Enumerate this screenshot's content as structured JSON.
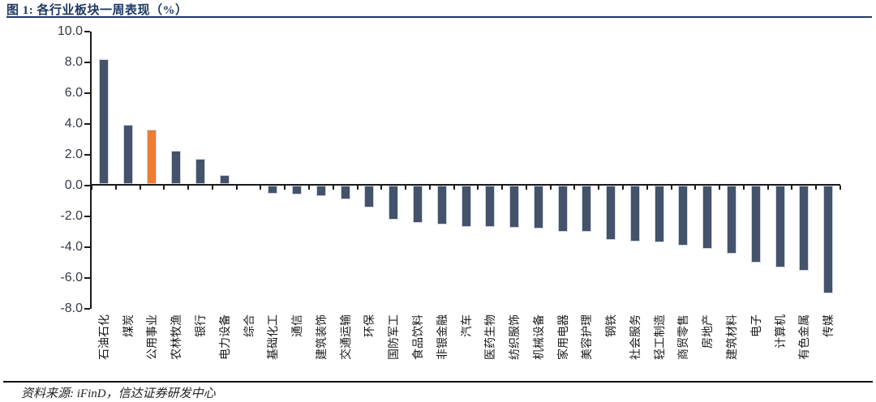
{
  "figure": {
    "title": "图 1: 各行业板块一周表现（%）",
    "source": "资料来源: iFinD，信达证券研发中心"
  },
  "chart_data": {
    "type": "bar",
    "title": "图 1: 各行业板块一周表现（%）",
    "categories": [
      "石油石化",
      "煤炭",
      "公用事业",
      "农林牧渔",
      "银行",
      "电力设备",
      "综合",
      "基础化工",
      "通信",
      "建筑装饰",
      "交通运输",
      "环保",
      "国防军工",
      "食品饮料",
      "非银金融",
      "汽车",
      "医药生物",
      "纺织服饰",
      "机械设备",
      "家用电器",
      "美容护理",
      "钢铁",
      "社会服务",
      "轻工制造",
      "商贸零售",
      "房地产",
      "建筑材料",
      "电子",
      "计算机",
      "有色金属",
      "传媒"
    ],
    "values": [
      8.1,
      3.85,
      3.5,
      2.15,
      1.65,
      0.6,
      0.0,
      -0.5,
      -0.6,
      -0.7,
      -0.9,
      -1.4,
      -2.2,
      -2.4,
      -2.5,
      -2.7,
      -2.7,
      -2.75,
      -2.8,
      -3.0,
      -3.0,
      -3.5,
      -3.6,
      -3.7,
      -3.9,
      -4.1,
      -4.4,
      -5.0,
      -5.3,
      -5.5,
      -7.0
    ],
    "highlight_index": 2,
    "highlight_category": "公用事业",
    "colors": {
      "bar": "#44536B",
      "highlight": "#ED7D31",
      "axis": "#1a1a1a",
      "title": "#1F3864"
    },
    "ylim": [
      -8,
      10
    ],
    "ytick_labels": [
      "10.0",
      "8.0",
      "6.0",
      "4.0",
      "2.0",
      "0.0",
      "-2.0",
      "-4.0",
      "-6.0",
      "-8.0"
    ],
    "xlabel": "",
    "ylabel": "",
    "grid": false,
    "legend": "none"
  }
}
